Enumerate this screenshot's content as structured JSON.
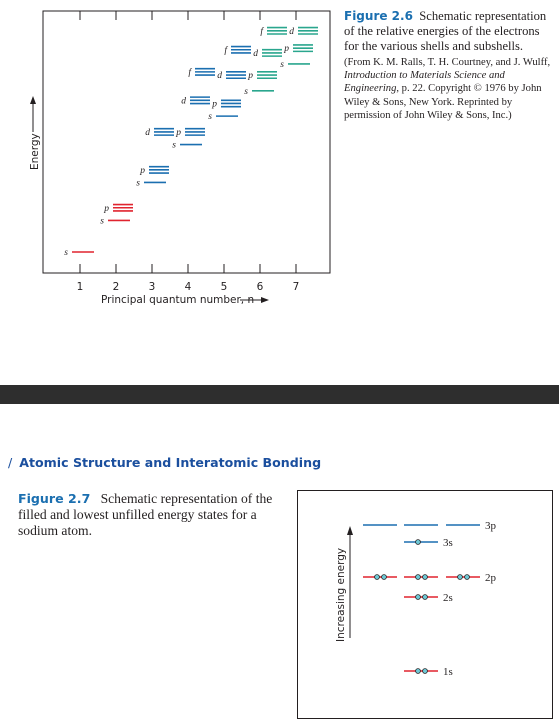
{
  "figure_2_6": {
    "number": "Figure 2.6",
    "caption": "Schematic representation of the relative energies of the electrons for the various shells and subshells.",
    "credit_prefix": "(From K. M. Ralls, T. H. Courtney, and J. Wulff, ",
    "credit_title": "Introduction to Materials Science and Engineering",
    "credit_suffix": ", p. 22. Copyright © 1976 by John Wiley & Sons, New York. Reprinted by permission of John Wiley & Sons, Inc.)",
    "y_axis_label": "Energy",
    "x_axis_label": "Principal quantum number, n",
    "x_ticks": [
      "1",
      "2",
      "3",
      "4",
      "5",
      "6",
      "7"
    ],
    "subshell_labels": {
      "s": "s",
      "p": "p",
      "d": "d",
      "f": "f"
    },
    "colors": {
      "red": "#e0242f",
      "blue": "#1b6fb0",
      "teal": "#2aa68e",
      "ink": "#231f20"
    },
    "levels": [
      {
        "n": 1,
        "subshells": [
          {
            "type": "s",
            "energy": 1,
            "color": "red"
          }
        ]
      },
      {
        "n": 2,
        "subshells": [
          {
            "type": "s",
            "energy": 2,
            "color": "red"
          },
          {
            "type": "p",
            "energy": 2.4,
            "color": "red"
          }
        ]
      },
      {
        "n": 3,
        "subshells": [
          {
            "type": "s",
            "energy": 3.2,
            "color": "blue"
          },
          {
            "type": "p",
            "energy": 3.6,
            "color": "blue"
          },
          {
            "type": "d",
            "energy": 4.8,
            "color": "blue"
          }
        ]
      },
      {
        "n": 4,
        "subshells": [
          {
            "type": "s",
            "energy": 4.4,
            "color": "blue"
          },
          {
            "type": "p",
            "energy": 4.8,
            "color": "blue"
          },
          {
            "type": "d",
            "energy": 5.8,
            "color": "blue"
          },
          {
            "type": "f",
            "energy": 6.7,
            "color": "blue"
          }
        ]
      },
      {
        "n": 5,
        "subshells": [
          {
            "type": "s",
            "energy": 5.3,
            "color": "blue"
          },
          {
            "type": "p",
            "energy": 5.7,
            "color": "blue"
          },
          {
            "type": "d",
            "energy": 6.6,
            "color": "blue"
          },
          {
            "type": "f",
            "energy": 7.4,
            "color": "blue"
          }
        ]
      },
      {
        "n": 6,
        "subshells": [
          {
            "type": "s",
            "energy": 6.1,
            "color": "teal"
          },
          {
            "type": "p",
            "energy": 6.6,
            "color": "teal"
          },
          {
            "type": "d",
            "energy": 7.3,
            "color": "teal"
          },
          {
            "type": "f",
            "energy": 8.0,
            "color": "teal"
          }
        ]
      },
      {
        "n": 7,
        "subshells": [
          {
            "type": "s",
            "energy": 6.95,
            "color": "teal"
          },
          {
            "type": "p",
            "energy": 7.45,
            "color": "teal"
          },
          {
            "type": "d",
            "energy": 8.0,
            "color": "teal"
          }
        ]
      }
    ]
  },
  "running_head": {
    "slash": "/",
    "title": "Atomic Structure and Interatomic Bonding"
  },
  "figure_2_7": {
    "number": "Figure 2.7",
    "caption": "Schematic representation of the filled and lowest unfilled energy states for a sodium atom.",
    "y_axis_label": "Increasing energy",
    "colors": {
      "red": "#e0242f",
      "blue": "#1b6fb0",
      "electron_fill": "#6ec9d6",
      "ink": "#231f20"
    },
    "states": [
      {
        "label": "3p",
        "orbitals": 3,
        "color": "blue",
        "electrons": 0
      },
      {
        "label": "3s",
        "orbitals": 1,
        "color": "blue",
        "electrons": 1
      },
      {
        "label": "2p",
        "orbitals": 3,
        "color": "red",
        "electrons": 6
      },
      {
        "label": "2s",
        "orbitals": 1,
        "color": "red",
        "electrons": 2
      },
      {
        "label": "1s",
        "orbitals": 1,
        "color": "red",
        "electrons": 2
      }
    ]
  }
}
